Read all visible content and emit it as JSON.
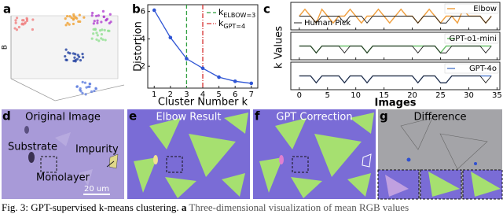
{
  "panel_letters": [
    "a",
    "b",
    "c",
    "d",
    "e",
    "f",
    "g"
  ],
  "panel_a": {
    "z_label": "B"
  },
  "chart_data": [
    {
      "type": "line",
      "x_label": "Cluster Number k",
      "y_label": "Distortion",
      "x": [
        1,
        2,
        3,
        4,
        5,
        6,
        7
      ],
      "series": [
        {
          "color": "#2f55d4",
          "values": [
            6.1,
            4.1,
            2.55,
            1.85,
            1.2,
            0.9,
            0.75
          ]
        }
      ],
      "xlim": [
        0.6,
        7.4
      ],
      "xticks": [
        1,
        2,
        3,
        4,
        5,
        6,
        7
      ],
      "ylim": [
        0.4,
        6.5
      ],
      "yticks": [
        2,
        4,
        6
      ],
      "reference_lines": [
        {
          "x": 3,
          "color": "#2e9e3e",
          "style": "dashed",
          "label": "k",
          "label_sub": "ELBOW=3"
        },
        {
          "x": 4,
          "color": "#d63030",
          "style": "dashdot",
          "label": "k",
          "label_sub": "GPT=4"
        }
      ]
    },
    {
      "type": "line",
      "x_label": "Images",
      "y_label": "k Values",
      "x": [
        0,
        1,
        2,
        3,
        4,
        5,
        6,
        7,
        8,
        9,
        10,
        11,
        12,
        13,
        14,
        15,
        16,
        17,
        18,
        19,
        20,
        21,
        22,
        23,
        24,
        25,
        26,
        27,
        28,
        29,
        30,
        31,
        32,
        33,
        34
      ],
      "xlim": [
        -1.5,
        35.5
      ],
      "xticks": [
        0,
        5,
        10,
        15,
        20,
        25,
        30,
        35
      ],
      "ylim": [
        2,
        6
      ],
      "series": [
        {
          "name": "Human Pick",
          "color": "#222222",
          "values": [
            4,
            4,
            4,
            3,
            4,
            4,
            4,
            4,
            3,
            4,
            4,
            4,
            3,
            4,
            4,
            4,
            4,
            4,
            4,
            4,
            4,
            3,
            4,
            4,
            4,
            3,
            3,
            4,
            4,
            4,
            4,
            4,
            4,
            3,
            4
          ]
        },
        {
          "name": "Elbow",
          "color": "#f0a040",
          "values": [
            4,
            5,
            4,
            3,
            5,
            4,
            3,
            4,
            4,
            5,
            4,
            3,
            4,
            4,
            5,
            4,
            3,
            4,
            5,
            4,
            4,
            3,
            4,
            5,
            4,
            3,
            4,
            4,
            3,
            5,
            4,
            4,
            4,
            3,
            4
          ]
        },
        {
          "name": "GPT-o1-mini",
          "color": "#6cbf6c",
          "values": [
            4,
            4,
            4,
            3,
            4,
            4,
            4,
            4,
            4,
            4,
            4,
            4,
            3,
            4,
            4,
            4,
            4,
            4,
            4,
            4,
            4,
            4,
            4,
            4,
            4,
            3,
            4,
            4,
            4,
            4,
            4,
            4,
            4,
            4,
            4
          ]
        },
        {
          "name": "GPT-4o",
          "color": "#5a82cf",
          "values": [
            4,
            4,
            4,
            3,
            4,
            4,
            4,
            4,
            3,
            4,
            4,
            4,
            3,
            4,
            4,
            4,
            4,
            4,
            4,
            4,
            4,
            3,
            4,
            4,
            4,
            3,
            3,
            4,
            4,
            4,
            4,
            4,
            4,
            4,
            4
          ]
        }
      ]
    }
  ],
  "images": [
    {
      "title": "Original Image",
      "labels": [
        "Substrate",
        "Impurity",
        "Monolayer"
      ],
      "scale_bar": "20 um"
    },
    {
      "title": "Elbow Result"
    },
    {
      "title": "GPT Correction"
    },
    {
      "title": "Difference"
    }
  ],
  "caption": {
    "label": "Fig. 3:",
    "title": "GPT-supervised k-means clustering.",
    "panel": "a",
    "text": "Three-dimensional visualization of mean RGB values"
  }
}
